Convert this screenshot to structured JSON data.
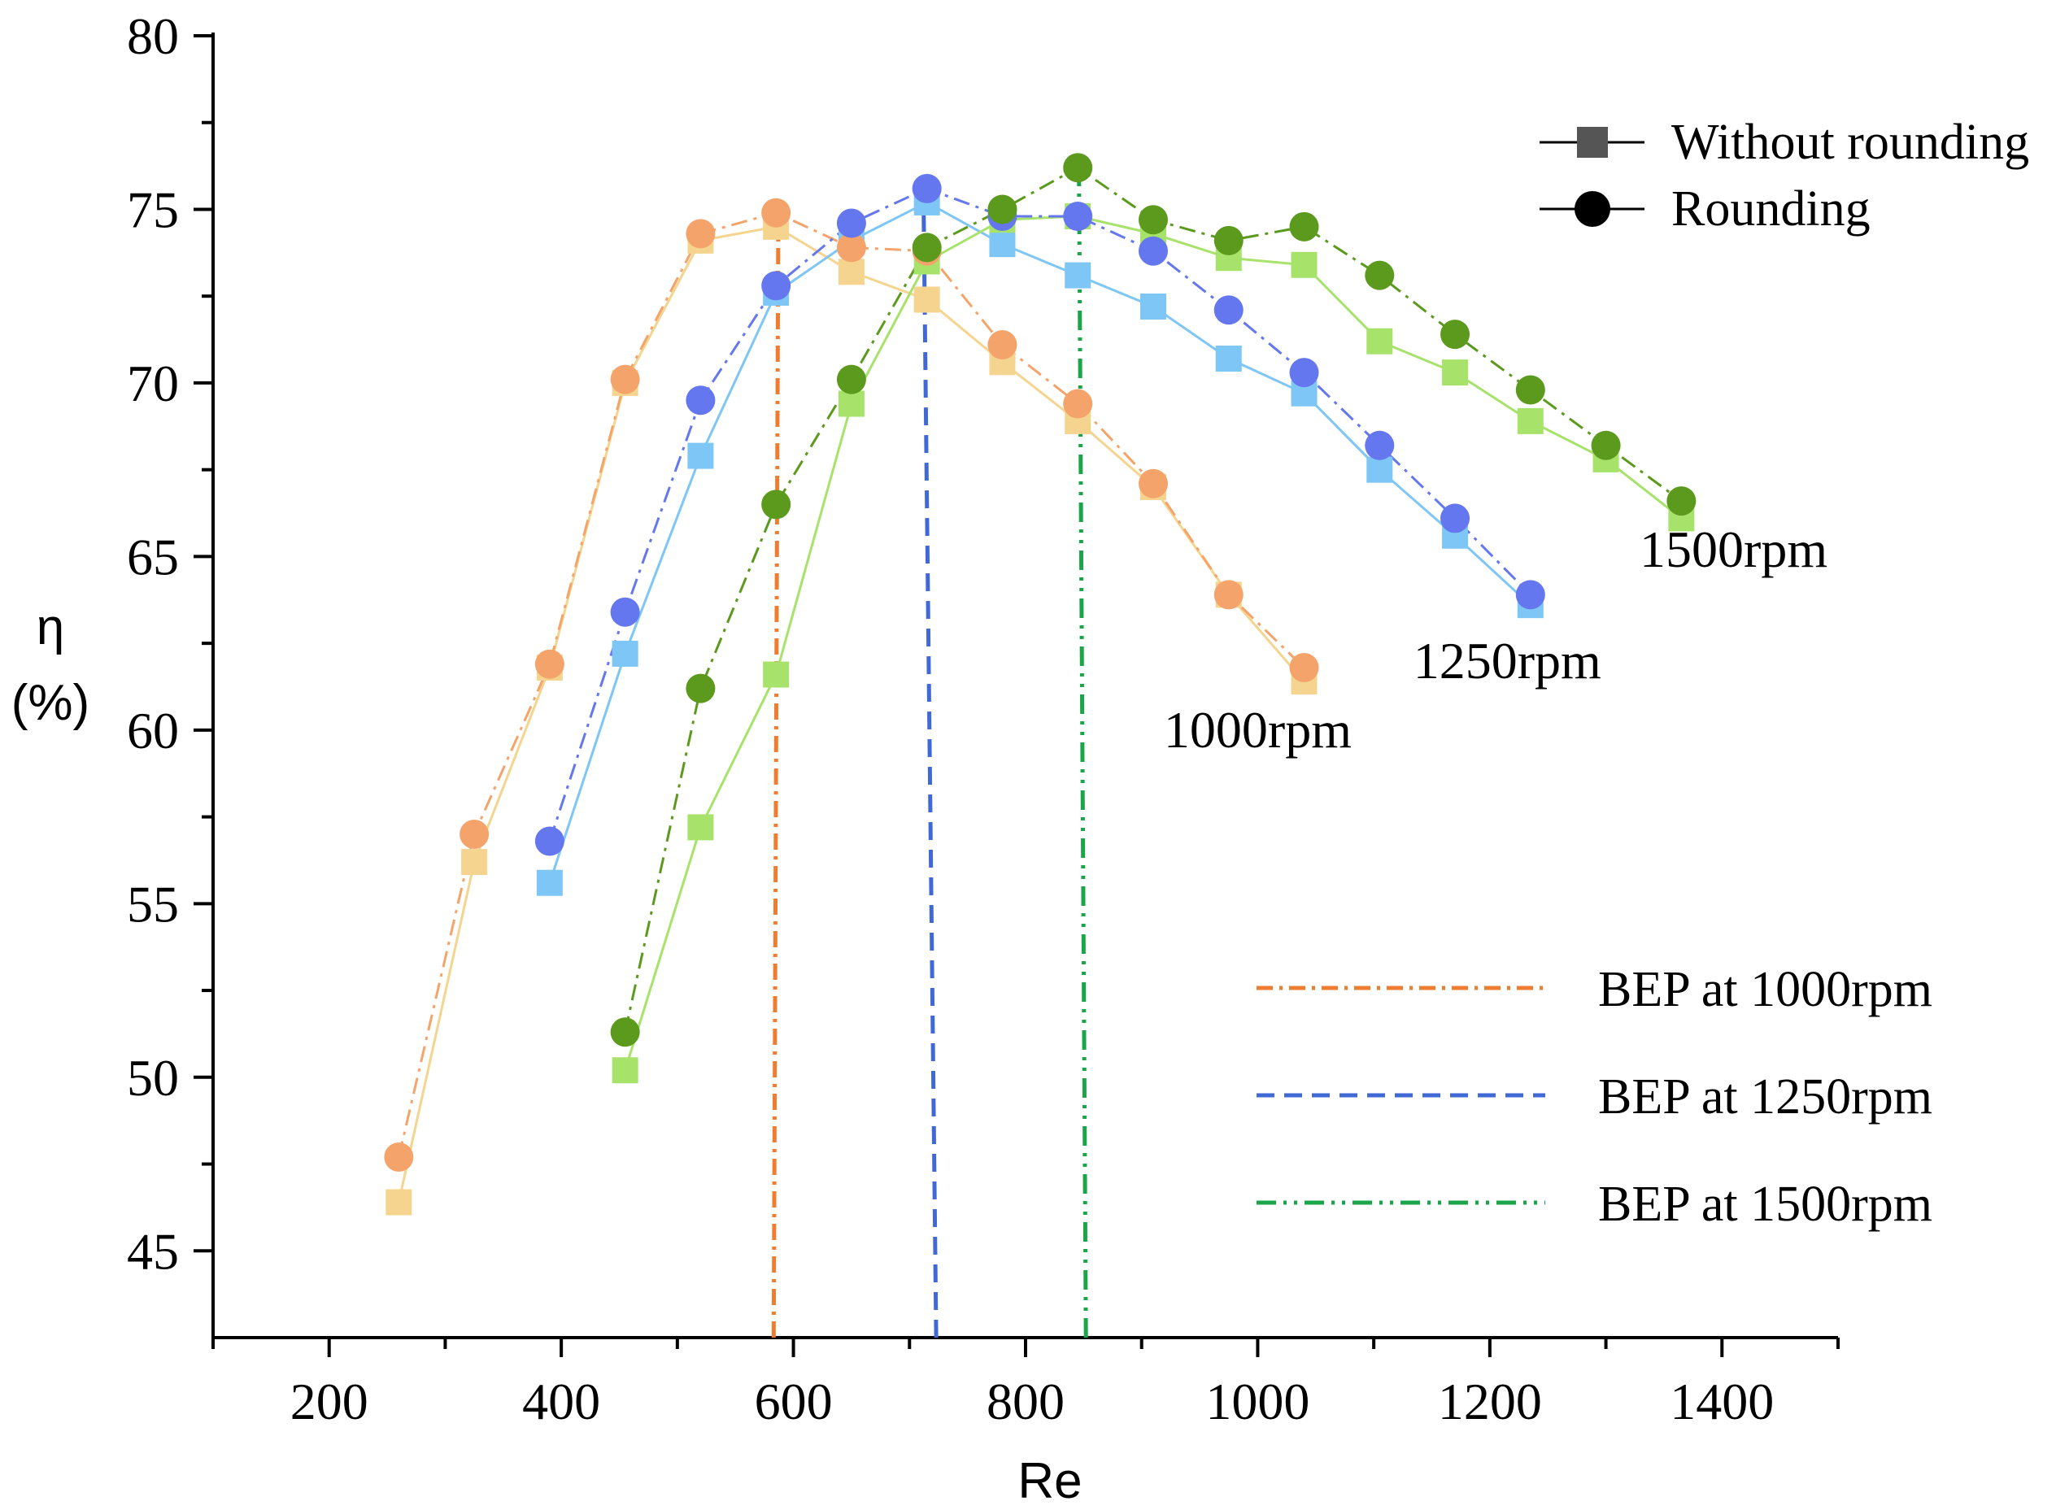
{
  "chart_data": {
    "type": "line",
    "title": "",
    "xlabel": "Re",
    "ylabel_line1": "η",
    "ylabel_line2": "(%)",
    "xlim": [
      100,
      1500
    ],
    "ylim": [
      42.5,
      80
    ],
    "x_ticks": [
      200,
      400,
      600,
      800,
      1000,
      1200,
      1400
    ],
    "x_tick_labels": [
      "200",
      "400",
      "600",
      "800",
      "1000",
      "1200",
      "1400"
    ],
    "y_ticks": [
      45,
      50,
      55,
      60,
      65,
      70,
      75,
      80
    ],
    "y_tick_labels": [
      "45",
      "50",
      "55",
      "60",
      "65",
      "70",
      "75",
      "80"
    ],
    "grid": false,
    "series": [
      {
        "name": "1000rpm Without rounding",
        "marker": "square",
        "color": "#f5d48f",
        "line_style": "solid",
        "x": [
          260,
          325,
          390,
          455,
          520,
          585,
          650,
          715,
          780,
          845,
          910,
          975,
          1040
        ],
        "y": [
          46.4,
          56.2,
          61.8,
          70.0,
          74.1,
          74.5,
          73.2,
          72.4,
          70.6,
          68.9,
          67.0,
          63.9,
          61.4
        ]
      },
      {
        "name": "1000rpm Rounding",
        "marker": "circle",
        "color": "#f4a46a",
        "line_style": "dashdot",
        "x": [
          260,
          325,
          390,
          455,
          520,
          585,
          650,
          715,
          780,
          845,
          910,
          975,
          1040
        ],
        "y": [
          47.7,
          57.0,
          61.9,
          70.1,
          74.3,
          74.9,
          73.9,
          73.8,
          71.1,
          69.4,
          67.1,
          63.9,
          61.8
        ]
      },
      {
        "name": "1250rpm Without rounding",
        "marker": "square",
        "color": "#7ec6f5",
        "line_style": "solid",
        "x": [
          390,
          455,
          520,
          585,
          650,
          715,
          780,
          845,
          910,
          975,
          1040,
          1105,
          1170,
          1235
        ],
        "y": [
          55.6,
          62.2,
          67.9,
          72.6,
          74.1,
          75.2,
          74.0,
          73.1,
          72.2,
          70.7,
          69.7,
          67.5,
          65.6,
          63.6
        ]
      },
      {
        "name": "1250rpm Rounding",
        "marker": "circle",
        "color": "#6477ee",
        "line_style": "dashdot",
        "x": [
          390,
          455,
          520,
          585,
          650,
          715,
          780,
          845,
          910,
          975,
          1040,
          1105,
          1170,
          1235
        ],
        "y": [
          56.8,
          63.4,
          69.5,
          72.8,
          74.6,
          75.6,
          74.8,
          74.8,
          73.8,
          72.1,
          70.3,
          68.2,
          66.1,
          63.9
        ]
      },
      {
        "name": "1500rpm Without rounding",
        "marker": "square",
        "color": "#a7e36b",
        "line_style": "solid",
        "x": [
          455,
          520,
          585,
          650,
          715,
          780,
          845,
          910,
          975,
          1040,
          1105,
          1170,
          1235,
          1300,
          1365
        ],
        "y": [
          50.2,
          57.2,
          61.6,
          69.4,
          73.5,
          74.7,
          74.8,
          74.3,
          73.6,
          73.4,
          71.2,
          70.3,
          68.9,
          67.8,
          66.1
        ]
      },
      {
        "name": "1500rpm Rounding",
        "marker": "circle",
        "color": "#5c9a1e",
        "line_style": "dashdot",
        "x": [
          455,
          520,
          585,
          650,
          715,
          780,
          845,
          910,
          975,
          1040,
          1105,
          1170,
          1235,
          1300,
          1365
        ],
        "y": [
          51.3,
          61.2,
          66.5,
          70.1,
          73.9,
          75.0,
          76.2,
          74.7,
          74.1,
          74.5,
          73.1,
          71.4,
          69.8,
          68.2,
          66.6
        ]
      }
    ],
    "bep_lines": [
      {
        "label": "BEP at 1000rpm",
        "color": "#ee7d31",
        "style": "dashdot",
        "x_bottom": 583,
        "x_top": 587,
        "y_top": 75.0
      },
      {
        "label": "BEP at 1250rpm",
        "color": "#4169d6",
        "style": "dashed",
        "x_bottom": 723,
        "x_top": 712,
        "y_top": 75.6
      },
      {
        "label": "BEP at 1500rpm",
        "color": "#1aa548",
        "style": "dashdotdot",
        "x_bottom": 852,
        "x_top": 846,
        "y_top": 76.2
      }
    ],
    "series_labels": [
      {
        "text": "1000rpm",
        "x": 1000,
        "y": 59.5
      },
      {
        "text": "1250rpm",
        "x": 1215,
        "y": 61.5
      },
      {
        "text": "1500rpm",
        "x": 1410,
        "y": 64.7
      }
    ],
    "marker_legend": [
      {
        "marker": "square",
        "label": "Without rounding"
      },
      {
        "marker": "circle",
        "label": "Rounding"
      }
    ],
    "marker_legend_position": "top-right",
    "bep_legend_position": "bottom-right"
  }
}
